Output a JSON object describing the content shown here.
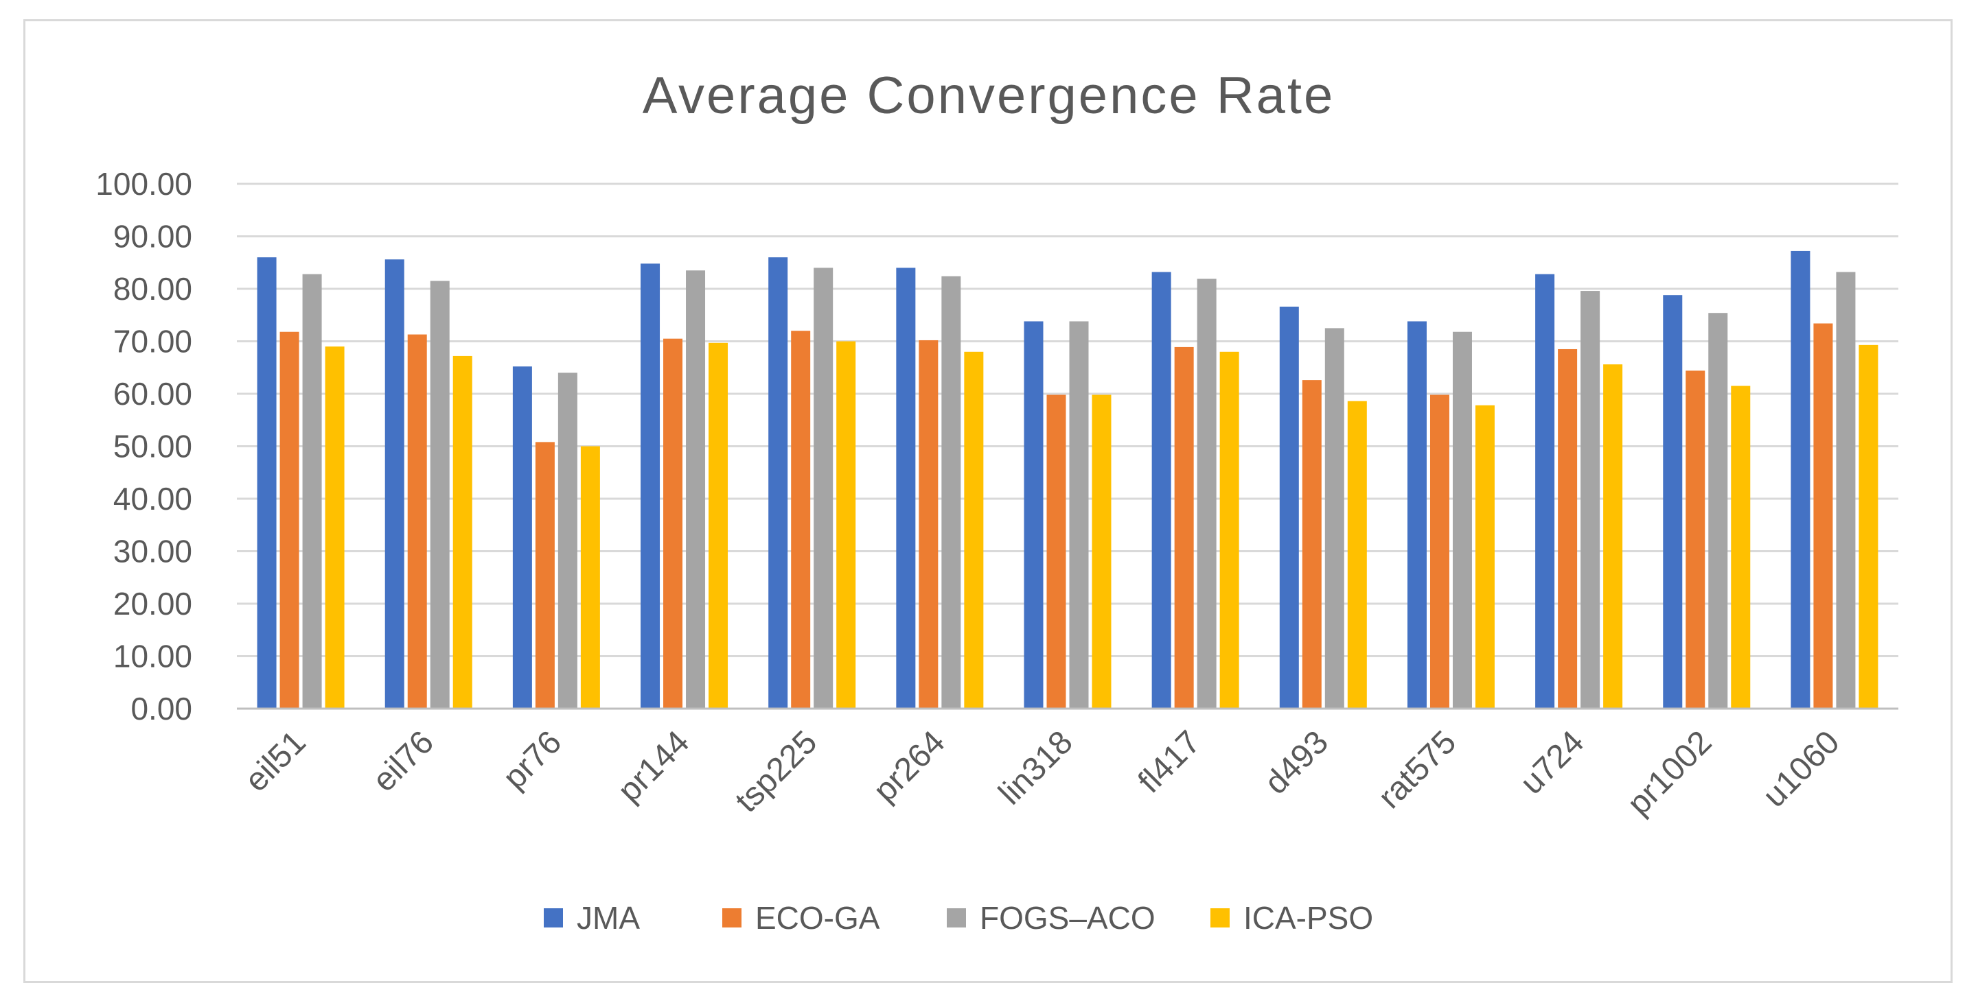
{
  "chart_data": {
    "type": "bar",
    "title": "Average Convergence Rate",
    "xlabel": "",
    "ylabel": "",
    "ylim": [
      0,
      100
    ],
    "ytick_step": 10,
    "ytick_labels": [
      "0.00",
      "10.00",
      "20.00",
      "30.00",
      "40.00",
      "50.00",
      "60.00",
      "70.00",
      "80.00",
      "90.00",
      "100.00"
    ],
    "grid": true,
    "legend_position": "bottom",
    "categories": [
      "eil51",
      "eil76",
      "pr76",
      "pr144",
      "tsp225",
      "pr264",
      "lin318",
      "fl417",
      "d493",
      "rat575",
      "u724",
      "pr1002",
      "u1060"
    ],
    "series": [
      {
        "name": "JMA",
        "color": "#4472c4",
        "values": [
          86.0,
          85.6,
          65.2,
          84.8,
          86.0,
          84.0,
          73.8,
          83.2,
          76.6,
          73.8,
          82.8,
          78.8,
          87.2
        ]
      },
      {
        "name": "ECO-GA",
        "color": "#ed7d31",
        "values": [
          71.8,
          71.3,
          50.8,
          70.5,
          72.0,
          70.2,
          59.8,
          68.9,
          62.6,
          59.8,
          68.5,
          64.4,
          73.4
        ]
      },
      {
        "name": "FOGS–ACO",
        "color": "#a5a5a5",
        "values": [
          82.8,
          81.5,
          64.0,
          83.5,
          84.0,
          82.4,
          73.8,
          81.9,
          72.5,
          71.8,
          79.6,
          75.4,
          83.2
        ]
      },
      {
        "name": "ICA-PSO",
        "color": "#ffc000",
        "values": [
          69.0,
          67.2,
          50.0,
          69.7,
          70.0,
          68.0,
          59.8,
          68.0,
          58.6,
          57.8,
          65.6,
          61.5,
          69.3
        ]
      }
    ]
  }
}
